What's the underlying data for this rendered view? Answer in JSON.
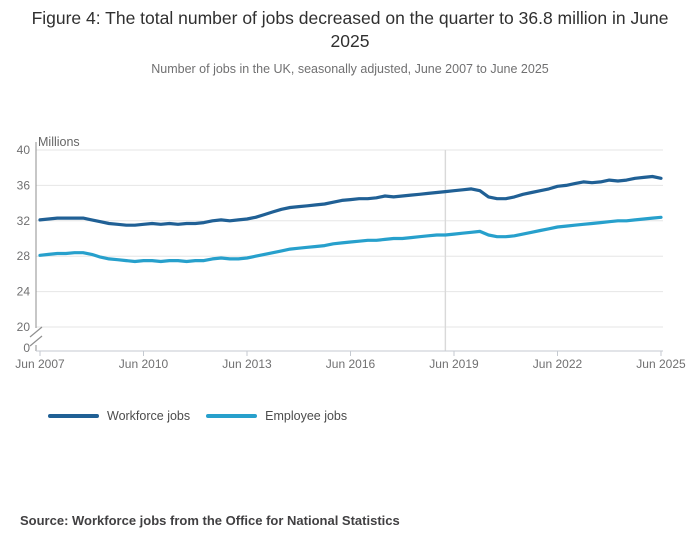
{
  "chart_data": {
    "type": "line",
    "title": "Figure 4: The total number of jobs decreased on the quarter to 36.8 million in June 2025",
    "subtitle": "Number of jobs in the UK, seasonally adjusted, June 2007 to June 2025",
    "ylabel": "Millions",
    "frequency": "quarterly",
    "x_start": "Jun 2007",
    "x_end": "Jun 2025",
    "x_tick_labels": [
      "Jun 2007",
      "Jun 2010",
      "Jun 2013",
      "Jun 2016",
      "Jun 2019",
      "Jun 2022",
      "Jun 2025"
    ],
    "x_tick_indices": [
      0,
      12,
      24,
      36,
      48,
      60,
      72
    ],
    "y_gridline_values": [
      40,
      36,
      32,
      28,
      24,
      20
    ],
    "y_zero_label": "0",
    "y_axis_break": true,
    "ylim_displayed": [
      20,
      40
    ],
    "grid": "horizontal",
    "legend_position": "bottom-left",
    "crosshair_at": "Mar 2019",
    "crosshair_index": 47,
    "series": [
      {
        "name": "Workforce jobs",
        "color": "#206095",
        "values": [
          32.1,
          32.2,
          32.3,
          32.3,
          32.3,
          32.3,
          32.1,
          31.9,
          31.7,
          31.6,
          31.5,
          31.5,
          31.6,
          31.7,
          31.6,
          31.7,
          31.6,
          31.7,
          31.7,
          31.8,
          32.0,
          32.1,
          32.0,
          32.1,
          32.2,
          32.4,
          32.7,
          33.0,
          33.3,
          33.5,
          33.6,
          33.7,
          33.8,
          33.9,
          34.1,
          34.3,
          34.4,
          34.5,
          34.5,
          34.6,
          34.8,
          34.7,
          34.8,
          34.9,
          35.0,
          35.1,
          35.2,
          35.3,
          35.4,
          35.5,
          35.6,
          35.4,
          34.7,
          34.5,
          34.5,
          34.7,
          35.0,
          35.2,
          35.4,
          35.6,
          35.9,
          36.0,
          36.2,
          36.4,
          36.3,
          36.4,
          36.6,
          36.5,
          36.6,
          36.8,
          36.9,
          37.0,
          36.8
        ]
      },
      {
        "name": "Employee jobs",
        "color": "#27A0CC",
        "values": [
          28.1,
          28.2,
          28.3,
          28.3,
          28.4,
          28.4,
          28.2,
          27.9,
          27.7,
          27.6,
          27.5,
          27.4,
          27.5,
          27.5,
          27.4,
          27.5,
          27.5,
          27.4,
          27.5,
          27.5,
          27.7,
          27.8,
          27.7,
          27.7,
          27.8,
          28.0,
          28.2,
          28.4,
          28.6,
          28.8,
          28.9,
          29.0,
          29.1,
          29.2,
          29.4,
          29.5,
          29.6,
          29.7,
          29.8,
          29.8,
          29.9,
          30.0,
          30.0,
          30.1,
          30.2,
          30.3,
          30.4,
          30.4,
          30.5,
          30.6,
          30.7,
          30.8,
          30.4,
          30.2,
          30.2,
          30.3,
          30.5,
          30.7,
          30.9,
          31.1,
          31.3,
          31.4,
          31.5,
          31.6,
          31.7,
          31.8,
          31.9,
          32.0,
          32.0,
          32.1,
          32.2,
          32.3,
          32.4
        ]
      }
    ],
    "colors": {
      "gridline": "#e6e6e6",
      "axis": "#8f8f8f",
      "baseline": "#c5cad1",
      "crosshair": "#d9d9d9",
      "tick_label": "#707071"
    }
  },
  "source": "Source: Workforce jobs from the Office for National Statistics"
}
